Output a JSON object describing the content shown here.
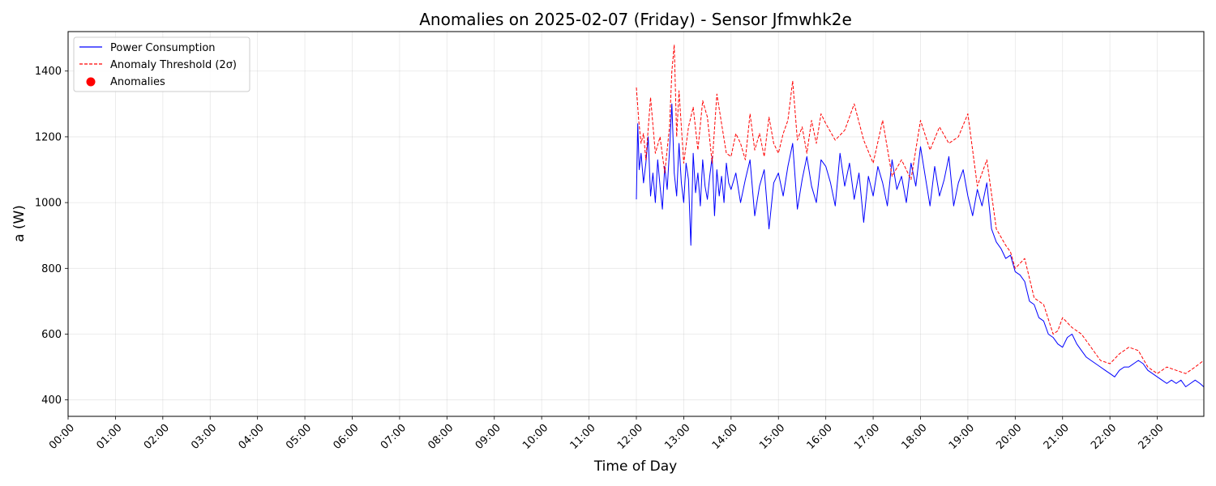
{
  "chart_data": {
    "type": "line",
    "title": "Anomalies on 2025-02-07 (Friday) - Sensor Jfmwhk2e",
    "xlabel": "Time of Day",
    "ylabel": "a (W)",
    "x_unit": "hours",
    "xlim": [
      0,
      23.983
    ],
    "ylim": [
      350,
      1520
    ],
    "x_ticks": [
      0,
      1,
      2,
      3,
      4,
      5,
      6,
      7,
      8,
      9,
      10,
      11,
      12,
      13,
      14,
      15,
      16,
      17,
      18,
      19,
      20,
      21,
      22,
      23
    ],
    "x_tick_labels": [
      "00:00",
      "01:00",
      "02:00",
      "03:00",
      "04:00",
      "05:00",
      "06:00",
      "07:00",
      "08:00",
      "09:00",
      "10:00",
      "11:00",
      "12:00",
      "13:00",
      "14:00",
      "15:00",
      "16:00",
      "17:00",
      "18:00",
      "19:00",
      "20:00",
      "21:00",
      "22:00",
      "23:00"
    ],
    "y_ticks": [
      400,
      600,
      800,
      1000,
      1200,
      1400
    ],
    "y_tick_labels": [
      "400",
      "600",
      "800",
      "1000",
      "1200",
      "1400"
    ],
    "grid": true,
    "legend_position": "top-left",
    "legend": [
      "Power Consumption",
      "Anomaly Threshold (2σ)",
      "Anomalies"
    ],
    "series": [
      {
        "name": "Power Consumption",
        "color": "#0000ff",
        "style": "solid",
        "x": [
          12.0,
          12.03,
          12.06,
          12.1,
          12.15,
          12.2,
          12.25,
          12.3,
          12.35,
          12.4,
          12.45,
          12.5,
          12.55,
          12.6,
          12.65,
          12.7,
          12.75,
          12.8,
          12.85,
          12.9,
          12.95,
          13.0,
          13.05,
          13.1,
          13.15,
          13.2,
          13.25,
          13.3,
          13.35,
          13.4,
          13.45,
          13.5,
          13.55,
          13.6,
          13.65,
          13.7,
          13.75,
          13.8,
          13.85,
          13.9,
          13.95,
          14.0,
          14.1,
          14.2,
          14.3,
          14.4,
          14.5,
          14.6,
          14.7,
          14.8,
          14.9,
          15.0,
          15.1,
          15.2,
          15.3,
          15.4,
          15.5,
          15.6,
          15.7,
          15.8,
          15.9,
          16.0,
          16.1,
          16.2,
          16.3,
          16.4,
          16.5,
          16.6,
          16.7,
          16.8,
          16.9,
          17.0,
          17.1,
          17.2,
          17.3,
          17.4,
          17.5,
          17.6,
          17.7,
          17.8,
          17.9,
          18.0,
          18.1,
          18.2,
          18.3,
          18.4,
          18.5,
          18.6,
          18.7,
          18.8,
          18.9,
          19.0,
          19.1,
          19.2,
          19.3,
          19.4,
          19.5,
          19.6,
          19.7,
          19.8,
          19.9,
          20.0,
          20.1,
          20.2,
          20.3,
          20.4,
          20.5,
          20.6,
          20.7,
          20.8,
          20.9,
          21.0,
          21.1,
          21.2,
          21.3,
          21.4,
          21.5,
          21.6,
          21.7,
          21.8,
          21.9,
          22.0,
          22.1,
          22.2,
          22.3,
          22.4,
          22.5,
          22.6,
          22.7,
          22.8,
          22.9,
          23.0,
          23.1,
          23.2,
          23.3,
          23.4,
          23.5,
          23.6,
          23.7,
          23.8,
          23.9,
          23.98
        ],
        "y": [
          1010,
          1240,
          1100,
          1150,
          1060,
          1120,
          1200,
          1020,
          1090,
          1000,
          1130,
          1050,
          980,
          1110,
          1040,
          1160,
          1300,
          1090,
          1020,
          1180,
          1060,
          1000,
          1120,
          1070,
          870,
          1150,
          1030,
          1090,
          990,
          1130,
          1050,
          1010,
          1080,
          1140,
          960,
          1100,
          1020,
          1080,
          1000,
          1120,
          1060,
          1040,
          1090,
          1000,
          1070,
          1130,
          960,
          1050,
          1100,
          920,
          1060,
          1090,
          1020,
          1110,
          1180,
          980,
          1070,
          1140,
          1050,
          1000,
          1130,
          1110,
          1060,
          990,
          1150,
          1050,
          1120,
          1010,
          1090,
          940,
          1080,
          1020,
          1110,
          1060,
          990,
          1130,
          1040,
          1080,
          1000,
          1120,
          1050,
          1170,
          1080,
          990,
          1110,
          1020,
          1070,
          1140,
          990,
          1060,
          1100,
          1020,
          960,
          1040,
          990,
          1060,
          920,
          880,
          860,
          830,
          840,
          790,
          780,
          760,
          700,
          690,
          650,
          640,
          600,
          590,
          570,
          560,
          590,
          600,
          570,
          550,
          530,
          520,
          510,
          500,
          490,
          480,
          470,
          490,
          500,
          500,
          510,
          520,
          510,
          490,
          480,
          470,
          460,
          450,
          460,
          450,
          460,
          440,
          450,
          460,
          450,
          440
        ]
      },
      {
        "name": "Anomaly Threshold (2σ)",
        "color": "#ff0000",
        "style": "dashed",
        "x": [
          12.0,
          12.05,
          12.1,
          12.15,
          12.2,
          12.3,
          12.4,
          12.5,
          12.6,
          12.7,
          12.75,
          12.8,
          12.85,
          12.9,
          13.0,
          13.1,
          13.2,
          13.3,
          13.4,
          13.5,
          13.6,
          13.7,
          13.8,
          13.9,
          14.0,
          14.1,
          14.2,
          14.3,
          14.4,
          14.5,
          14.6,
          14.7,
          14.8,
          14.9,
          15.0,
          15.1,
          15.2,
          15.3,
          15.4,
          15.5,
          15.6,
          15.7,
          15.8,
          15.9,
          16.0,
          16.2,
          16.4,
          16.6,
          16.8,
          17.0,
          17.2,
          17.4,
          17.6,
          17.8,
          18.0,
          18.2,
          18.4,
          18.6,
          18.8,
          19.0,
          19.2,
          19.4,
          19.6,
          19.8,
          19.9,
          20.0,
          20.2,
          20.4,
          20.6,
          20.8,
          20.9,
          21.0,
          21.2,
          21.4,
          21.6,
          21.8,
          22.0,
          22.2,
          22.4,
          22.6,
          22.8,
          22.9,
          23.0,
          23.2,
          23.4,
          23.6,
          23.8,
          23.98
        ],
        "y": [
          1350,
          1250,
          1180,
          1210,
          1130,
          1320,
          1150,
          1200,
          1090,
          1230,
          1400,
          1480,
          1200,
          1340,
          1120,
          1230,
          1290,
          1160,
          1310,
          1260,
          1120,
          1330,
          1240,
          1150,
          1140,
          1210,
          1180,
          1130,
          1270,
          1160,
          1210,
          1140,
          1260,
          1180,
          1150,
          1210,
          1250,
          1370,
          1190,
          1230,
          1150,
          1250,
          1180,
          1270,
          1240,
          1190,
          1220,
          1300,
          1190,
          1120,
          1250,
          1080,
          1130,
          1070,
          1250,
          1160,
          1230,
          1180,
          1200,
          1270,
          1050,
          1130,
          920,
          870,
          850,
          800,
          830,
          710,
          690,
          600,
          610,
          650,
          620,
          600,
          560,
          520,
          510,
          540,
          560,
          550,
          500,
          490,
          480,
          500,
          490,
          480,
          500,
          520
        ]
      }
    ],
    "anomalies": []
  }
}
